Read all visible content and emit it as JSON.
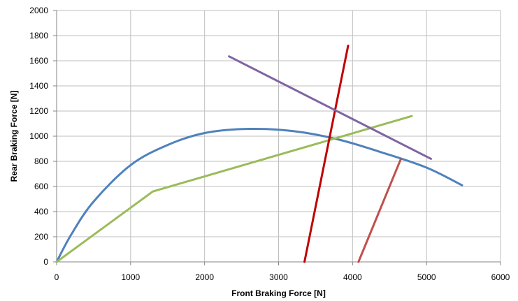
{
  "chart_data": {
    "type": "line",
    "title": "",
    "xlabel": "Front Braking Force [N]",
    "ylabel": "Rear Braking Force [N]",
    "xlim": [
      0,
      6000
    ],
    "ylim": [
      0,
      2000
    ],
    "x_ticks": [
      0,
      1000,
      2000,
      3000,
      4000,
      5000,
      6000
    ],
    "y_ticks": [
      0,
      200,
      400,
      600,
      800,
      1000,
      1200,
      1400,
      1600,
      1800,
      2000
    ],
    "grid": true,
    "legend": "none",
    "series": [
      {
        "color": "#4f81bd",
        "smooth": true,
        "points": [
          [
            0,
            0
          ],
          [
            200,
            220
          ],
          [
            500,
            480
          ],
          [
            1000,
            770
          ],
          [
            1500,
            930
          ],
          [
            2000,
            1025
          ],
          [
            2600,
            1058
          ],
          [
            3200,
            1040
          ],
          [
            3800,
            975
          ],
          [
            4400,
            870
          ],
          [
            5000,
            750
          ],
          [
            5480,
            610
          ]
        ]
      },
      {
        "color": "#9bbb59",
        "smooth": false,
        "points": [
          [
            0,
            0
          ],
          [
            1300,
            560
          ],
          [
            4800,
            1160
          ]
        ]
      },
      {
        "color": "#c00000",
        "smooth": false,
        "points": [
          [
            3350,
            0
          ],
          [
            3940,
            1720
          ]
        ]
      },
      {
        "color": "#c0504d",
        "smooth": false,
        "points": [
          [
            4080,
            0
          ],
          [
            4650,
            815
          ]
        ]
      },
      {
        "color": "#8064a2",
        "smooth": false,
        "points": [
          [
            2330,
            1635
          ],
          [
            5060,
            820
          ]
        ]
      }
    ]
  }
}
